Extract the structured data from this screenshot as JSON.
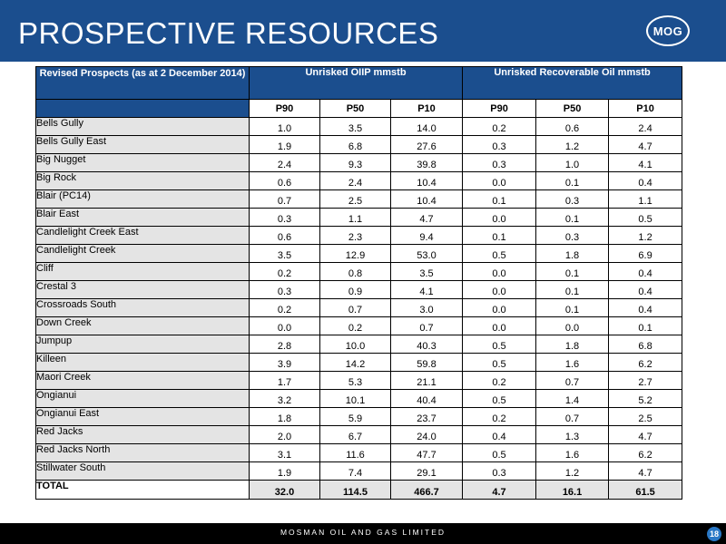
{
  "header": {
    "title": "PROSPECTIVE RESOURCES",
    "logo_text": "MOG"
  },
  "table": {
    "name_header": "Revised Prospects (as at 2 December 2014)",
    "group_headers": [
      "Unrisked OIIP mmstb",
      "Unrisked Recoverable Oil mmstb"
    ],
    "sub_headers": [
      "P90",
      "P50",
      "P10",
      "P90",
      "P50",
      "P10"
    ],
    "rows": [
      {
        "name": "Bells Gully",
        "values": [
          "1.0",
          "3.5",
          "14.0",
          "0.2",
          "0.6",
          "2.4"
        ]
      },
      {
        "name": "Bells Gully East",
        "values": [
          "1.9",
          "6.8",
          "27.6",
          "0.3",
          "1.2",
          "4.7"
        ]
      },
      {
        "name": "Big Nugget",
        "values": [
          "2.4",
          "9.3",
          "39.8",
          "0.3",
          "1.0",
          "4.1"
        ]
      },
      {
        "name": "Big Rock",
        "values": [
          "0.6",
          "2.4",
          "10.4",
          "0.0",
          "0.1",
          "0.4"
        ]
      },
      {
        "name": "Blair (PC14)",
        "values": [
          "0.7",
          "2.5",
          "10.4",
          "0.1",
          "0.3",
          "1.1"
        ]
      },
      {
        "name": "Blair East",
        "values": [
          "0.3",
          "1.1",
          "4.7",
          "0.0",
          "0.1",
          "0.5"
        ]
      },
      {
        "name": "Candlelight Creek East",
        "values": [
          "0.6",
          "2.3",
          "9.4",
          "0.1",
          "0.3",
          "1.2"
        ]
      },
      {
        "name": "Candlelight Creek",
        "values": [
          "3.5",
          "12.9",
          "53.0",
          "0.5",
          "1.8",
          "6.9"
        ]
      },
      {
        "name": "Cliff",
        "values": [
          "0.2",
          "0.8",
          "3.5",
          "0.0",
          "0.1",
          "0.4"
        ]
      },
      {
        "name": "Crestal 3",
        "values": [
          "0.3",
          "0.9",
          "4.1",
          "0.0",
          "0.1",
          "0.4"
        ]
      },
      {
        "name": "Crossroads South",
        "values": [
          "0.2",
          "0.7",
          "3.0",
          "0.0",
          "0.1",
          "0.4"
        ]
      },
      {
        "name": "Down Creek",
        "values": [
          "0.0",
          "0.2",
          "0.7",
          "0.0",
          "0.0",
          "0.1"
        ]
      },
      {
        "name": "Jumpup",
        "values": [
          "2.8",
          "10.0",
          "40.3",
          "0.5",
          "1.8",
          "6.8"
        ]
      },
      {
        "name": "Killeen",
        "values": [
          "3.9",
          "14.2",
          "59.8",
          "0.5",
          "1.6",
          "6.2"
        ]
      },
      {
        "name": "Maori Creek",
        "values": [
          "1.7",
          "5.3",
          "21.1",
          "0.2",
          "0.7",
          "2.7"
        ]
      },
      {
        "name": "Ongianui",
        "values": [
          "3.2",
          "10.1",
          "40.4",
          "0.5",
          "1.4",
          "5.2"
        ]
      },
      {
        "name": "Ongianui East",
        "values": [
          "1.8",
          "5.9",
          "23.7",
          "0.2",
          "0.7",
          "2.5"
        ]
      },
      {
        "name": "Red Jacks",
        "values": [
          "2.0",
          "6.7",
          "24.0",
          "0.4",
          "1.3",
          "4.7"
        ]
      },
      {
        "name": "Red Jacks North",
        "values": [
          "3.1",
          "11.6",
          "47.7",
          "0.5",
          "1.6",
          "6.2"
        ]
      },
      {
        "name": "Stillwater South",
        "values": [
          "1.9",
          "7.4",
          "29.1",
          "0.3",
          "1.2",
          "4.7"
        ]
      }
    ],
    "total": {
      "name": "TOTAL",
      "values": [
        "32.0",
        "114.5",
        "466.7",
        "4.7",
        "16.1",
        "61.5"
      ]
    }
  },
  "footer": {
    "company": "MOSMAN OIL AND GAS LIMITED",
    "page_number": "18"
  },
  "colors": {
    "brand_blue": "#1b4e8e",
    "row_label_grey": "#e4e4e4",
    "page_badge_blue": "#2a78c6",
    "footer_black": "#000000"
  }
}
